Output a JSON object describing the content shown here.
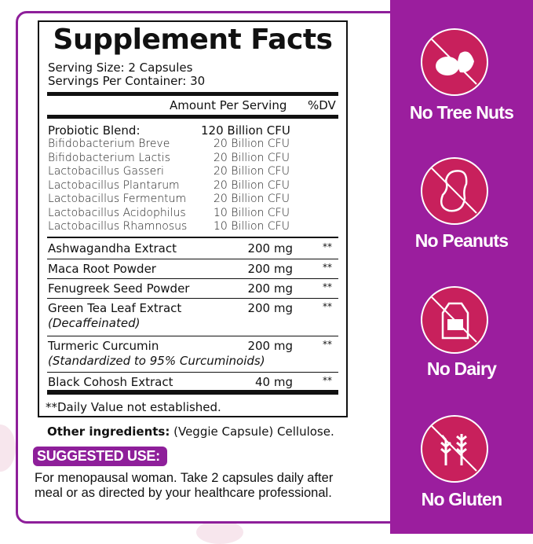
{
  "facts": {
    "title": "Supplement Facts",
    "serving_size": "Serving Size: 2 Capsules",
    "servings_per_container": "Servings Per Container: 30",
    "amount_header": "Amount Per Serving",
    "dv_header": "%DV",
    "blend": {
      "name": "Probiotic Blend:",
      "amount": "120 Billion CFU",
      "strains": [
        {
          "name": "Bifidobacterium Breve",
          "amount": "20 Billion CFU"
        },
        {
          "name": "Bifidobacterium Lactis",
          "amount": "20 Billion CFU"
        },
        {
          "name": "Lactobacillus Gasseri",
          "amount": "20 Billion CFU"
        },
        {
          "name": "Lactobacillus  Plantarum",
          "amount": "20 Billion CFU"
        },
        {
          "name": "Lactobacillus Fermentum",
          "amount": "20 Billion CFU"
        },
        {
          "name": "Lactobacillus Acidophilus",
          "amount": "10 Billion CFU"
        },
        {
          "name": "Lactobacillus  Rhamnosus",
          "amount": "10 Billion CFU"
        }
      ]
    },
    "ingredients": [
      {
        "name": "Ashwagandha Extract",
        "amount": "200 mg",
        "dv": "**"
      },
      {
        "name": "Maca  Root  Powder",
        "amount": "200 mg",
        "dv": "**"
      },
      {
        "name": "Fenugreek Seed Powder",
        "amount": "200 mg",
        "dv": "**"
      },
      {
        "name": "Green Tea Leaf Extract",
        "note": "(Decaffeinated)",
        "amount": "200 mg",
        "dv": "**"
      },
      {
        "name": "Turmeric Curcumin",
        "note": "(Standardized to 95% Curcuminoids)",
        "amount": "200 mg",
        "dv": "**"
      },
      {
        "name": "Black Cohosh Extract",
        "amount": "40 mg",
        "dv": "**"
      }
    ],
    "footnote": "**Daily Value not established."
  },
  "other_ingredients": {
    "label": "Other ingredients:",
    "value": " (Veggie Capsule) Cellulose."
  },
  "suggested_use": {
    "heading": "SUGGESTED USE:",
    "text": "For menopausal woman. Take 2 capsules daily after meal or as directed by your healthcare professional."
  },
  "badges": [
    {
      "label": "No Tree Nuts",
      "icon": "no-tree-nuts-icon"
    },
    {
      "label": "No Peanuts",
      "icon": "no-peanuts-icon"
    },
    {
      "label": "No Dairy",
      "icon": "no-dairy-icon"
    },
    {
      "label": "No Gluten",
      "icon": "no-gluten-icon"
    }
  ],
  "colors": {
    "purple": "#9b1e9e",
    "badge": "#c8205c"
  }
}
